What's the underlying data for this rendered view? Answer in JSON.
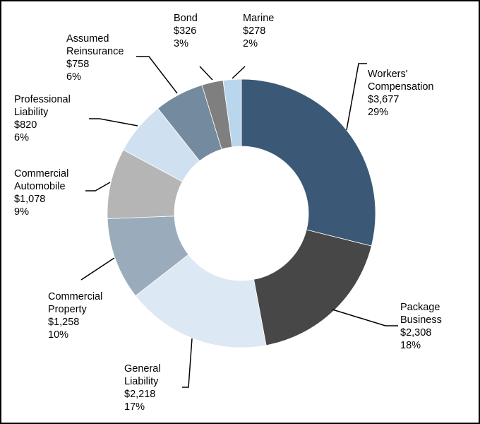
{
  "chart_data": {
    "type": "pie",
    "variant": "donut",
    "title": "",
    "start": "12 o'clock, clockwise",
    "slices": [
      {
        "name": [
          "Workers'",
          "Compensation"
        ],
        "value": 3677,
        "value_label": "$3,677",
        "percent": "29%",
        "color": "#3b5977"
      },
      {
        "name": [
          "Package",
          "Business"
        ],
        "value": 2308,
        "value_label": "$2,308",
        "percent": "18%",
        "color": "#474747"
      },
      {
        "name": [
          "General",
          "Liability"
        ],
        "value": 2218,
        "value_label": "$2,218",
        "percent": "17%",
        "color": "#dce8f3"
      },
      {
        "name": [
          "Commercial",
          "Property"
        ],
        "value": 1258,
        "value_label": "$1,258",
        "percent": "10%",
        "color": "#9aacbc"
      },
      {
        "name": [
          "Commercial",
          "Automobile"
        ],
        "value": 1078,
        "value_label": "$1,078",
        "percent": "9%",
        "color": "#b5b5b5"
      },
      {
        "name": [
          "Professional",
          "Liability"
        ],
        "value": 820,
        "value_label": "$820",
        "percent": "6%",
        "color": "#cfe1f0"
      },
      {
        "name": [
          "Assumed",
          "Reinsurance"
        ],
        "value": 758,
        "value_label": "$758",
        "percent": "6%",
        "color": "#748a9f"
      },
      {
        "name": [
          "Bond"
        ],
        "value": 326,
        "value_label": "$326",
        "percent": "3%",
        "color": "#7f7f7f"
      },
      {
        "name": [
          "Marine"
        ],
        "value": 278,
        "value_label": "$278",
        "percent": "2%",
        "color": "#bad6ec"
      }
    ]
  }
}
